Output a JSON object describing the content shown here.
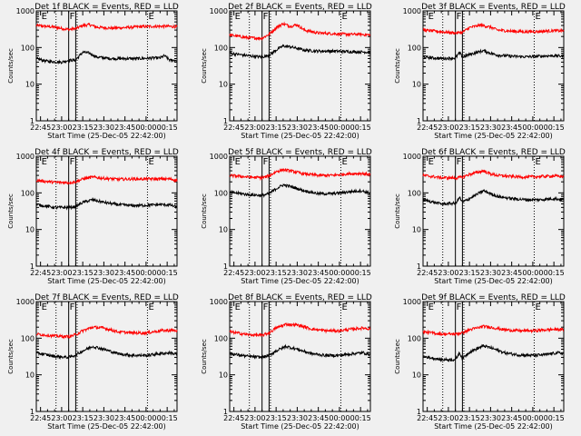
{
  "chart_data": {
    "type": "line",
    "scale": "log",
    "ylim": [
      1,
      1000
    ],
    "y_ticks": [
      {
        "v": 1,
        "label": "1"
      },
      {
        "v": 10,
        "label": "10"
      },
      {
        "v": 100,
        "label": "100"
      },
      {
        "v": 1000,
        "label": "1000"
      }
    ],
    "ylabel": "Counts/sec",
    "xlabel": "Start Time (25-Dec-05 22:42:00)",
    "xlim_minutes": [
      -3,
      97
    ],
    "x_ticks": [
      {
        "m": 0,
        "label": "22:45"
      },
      {
        "m": 15,
        "label": "23:00"
      },
      {
        "m": 30,
        "label": "23:15"
      },
      {
        "m": 45,
        "label": "23:30"
      },
      {
        "m": 60,
        "label": "23:45"
      },
      {
        "m": 75,
        "label": "00:00"
      },
      {
        "m": 90,
        "label": "00:15"
      }
    ],
    "dotted_lines_minutes": [
      11,
      26,
      76
    ],
    "solid_lines_minutes": [
      20,
      25
    ],
    "markers": [
      {
        "m": 0,
        "label": "E"
      },
      {
        "m": 20,
        "label": "F"
      },
      {
        "m": 76,
        "label": "E"
      }
    ],
    "series_colors": {
      "events": "#000000",
      "lld": "#ff0000"
    },
    "panels": [
      {
        "title": "Det 1f BLACK = Events, RED = LLD",
        "events": [
          [
            -3,
            50
          ],
          [
            5,
            42
          ],
          [
            15,
            40
          ],
          [
            20,
            45
          ],
          [
            22,
            45
          ],
          [
            25,
            46
          ],
          [
            30,
            75
          ],
          [
            35,
            70
          ],
          [
            40,
            55
          ],
          [
            50,
            50
          ],
          [
            60,
            50
          ],
          [
            70,
            50
          ],
          [
            80,
            52
          ],
          [
            85,
            52
          ],
          [
            88,
            60
          ],
          [
            92,
            45
          ],
          [
            97,
            45
          ]
        ],
        "lld": [
          [
            -3,
            400
          ],
          [
            10,
            360
          ],
          [
            20,
            310
          ],
          [
            25,
            330
          ],
          [
            30,
            400
          ],
          [
            35,
            420
          ],
          [
            40,
            360
          ],
          [
            50,
            340
          ],
          [
            60,
            350
          ],
          [
            70,
            370
          ],
          [
            80,
            380
          ],
          [
            90,
            380
          ],
          [
            97,
            370
          ]
        ]
      },
      {
        "title": "Det 2f BLACK = Events, RED = LLD",
        "events": [
          [
            -3,
            70
          ],
          [
            10,
            60
          ],
          [
            20,
            55
          ],
          [
            25,
            62
          ],
          [
            30,
            85
          ],
          [
            35,
            110
          ],
          [
            40,
            105
          ],
          [
            45,
            95
          ],
          [
            50,
            85
          ],
          [
            60,
            80
          ],
          [
            70,
            80
          ],
          [
            80,
            78
          ],
          [
            90,
            76
          ],
          [
            97,
            75
          ]
        ],
        "lld": [
          [
            -3,
            220
          ],
          [
            10,
            185
          ],
          [
            20,
            180
          ],
          [
            25,
            230
          ],
          [
            30,
            350
          ],
          [
            35,
            450
          ],
          [
            40,
            380
          ],
          [
            45,
            420
          ],
          [
            50,
            300
          ],
          [
            60,
            250
          ],
          [
            70,
            240
          ],
          [
            80,
            230
          ],
          [
            90,
            230
          ],
          [
            97,
            220
          ]
        ]
      },
      {
        "title": "Det 3f BLACK = Events, RED = LLD",
        "events": [
          [
            -3,
            55
          ],
          [
            10,
            50
          ],
          [
            20,
            52
          ],
          [
            23,
            72
          ],
          [
            25,
            55
          ],
          [
            30,
            65
          ],
          [
            40,
            82
          ],
          [
            45,
            70
          ],
          [
            50,
            62
          ],
          [
            60,
            58
          ],
          [
            70,
            56
          ],
          [
            80,
            58
          ],
          [
            90,
            60
          ],
          [
            97,
            58
          ]
        ],
        "lld": [
          [
            -3,
            300
          ],
          [
            10,
            270
          ],
          [
            20,
            250
          ],
          [
            25,
            260
          ],
          [
            30,
            350
          ],
          [
            38,
            410
          ],
          [
            45,
            360
          ],
          [
            50,
            300
          ],
          [
            60,
            280
          ],
          [
            70,
            270
          ],
          [
            80,
            275
          ],
          [
            90,
            290
          ],
          [
            97,
            285
          ]
        ]
      },
      {
        "title": "Det 4f BLACK = Events, RED = LLD",
        "events": [
          [
            -3,
            48
          ],
          [
            10,
            40
          ],
          [
            20,
            40
          ],
          [
            25,
            42
          ],
          [
            30,
            55
          ],
          [
            37,
            65
          ],
          [
            45,
            55
          ],
          [
            55,
            48
          ],
          [
            65,
            45
          ],
          [
            75,
            46
          ],
          [
            85,
            48
          ],
          [
            92,
            47
          ],
          [
            97,
            40
          ]
        ],
        "lld": [
          [
            -3,
            220
          ],
          [
            10,
            195
          ],
          [
            20,
            190
          ],
          [
            25,
            200
          ],
          [
            30,
            240
          ],
          [
            37,
            270
          ],
          [
            45,
            250
          ],
          [
            55,
            235
          ],
          [
            65,
            240
          ],
          [
            75,
            240
          ],
          [
            85,
            240
          ],
          [
            92,
            240
          ],
          [
            97,
            220
          ]
        ]
      },
      {
        "title": "Det 5f BLACK = Events, RED = LLD",
        "events": [
          [
            -3,
            105
          ],
          [
            10,
            90
          ],
          [
            20,
            85
          ],
          [
            25,
            95
          ],
          [
            30,
            130
          ],
          [
            35,
            165
          ],
          [
            40,
            150
          ],
          [
            50,
            115
          ],
          [
            60,
            95
          ],
          [
            70,
            95
          ],
          [
            80,
            105
          ],
          [
            90,
            115
          ],
          [
            97,
            100
          ]
        ],
        "lld": [
          [
            -3,
            300
          ],
          [
            10,
            270
          ],
          [
            20,
            260
          ],
          [
            25,
            290
          ],
          [
            30,
            380
          ],
          [
            35,
            430
          ],
          [
            40,
            400
          ],
          [
            50,
            330
          ],
          [
            60,
            300
          ],
          [
            70,
            300
          ],
          [
            80,
            330
          ],
          [
            90,
            340
          ],
          [
            97,
            320
          ]
        ]
      },
      {
        "title": "Det 6f BLACK = Events, RED = LLD",
        "events": [
          [
            -3,
            65
          ],
          [
            10,
            50
          ],
          [
            20,
            52
          ],
          [
            23,
            75
          ],
          [
            25,
            55
          ],
          [
            30,
            70
          ],
          [
            40,
            115
          ],
          [
            45,
            95
          ],
          [
            50,
            80
          ],
          [
            60,
            70
          ],
          [
            70,
            65
          ],
          [
            80,
            65
          ],
          [
            90,
            70
          ],
          [
            97,
            65
          ]
        ],
        "lld": [
          [
            -3,
            300
          ],
          [
            10,
            260
          ],
          [
            20,
            255
          ],
          [
            25,
            270
          ],
          [
            30,
            320
          ],
          [
            40,
            400
          ],
          [
            45,
            330
          ],
          [
            50,
            300
          ],
          [
            60,
            280
          ],
          [
            70,
            270
          ],
          [
            80,
            280
          ],
          [
            90,
            290
          ],
          [
            97,
            280
          ]
        ]
      },
      {
        "title": "Det 7f BLACK = Events, RED = LLD",
        "events": [
          [
            -3,
            40
          ],
          [
            10,
            32
          ],
          [
            20,
            30
          ],
          [
            25,
            35
          ],
          [
            30,
            45
          ],
          [
            37,
            60
          ],
          [
            45,
            50
          ],
          [
            55,
            38
          ],
          [
            65,
            34
          ],
          [
            75,
            34
          ],
          [
            85,
            38
          ],
          [
            92,
            40
          ],
          [
            97,
            36
          ]
        ],
        "lld": [
          [
            -3,
            130
          ],
          [
            10,
            115
          ],
          [
            20,
            110
          ],
          [
            25,
            125
          ],
          [
            30,
            160
          ],
          [
            37,
            200
          ],
          [
            45,
            190
          ],
          [
            55,
            150
          ],
          [
            65,
            140
          ],
          [
            75,
            140
          ],
          [
            85,
            160
          ],
          [
            92,
            165
          ],
          [
            97,
            160
          ]
        ]
      },
      {
        "title": "Det 8f BLACK = Events, RED = LLD",
        "events": [
          [
            -3,
            38
          ],
          [
            10,
            32
          ],
          [
            20,
            30
          ],
          [
            25,
            34
          ],
          [
            30,
            45
          ],
          [
            37,
            60
          ],
          [
            45,
            50
          ],
          [
            55,
            38
          ],
          [
            65,
            34
          ],
          [
            75,
            34
          ],
          [
            85,
            38
          ],
          [
            92,
            40
          ],
          [
            97,
            36
          ]
        ],
        "lld": [
          [
            -3,
            150
          ],
          [
            10,
            125
          ],
          [
            20,
            120
          ],
          [
            25,
            140
          ],
          [
            30,
            190
          ],
          [
            37,
            240
          ],
          [
            45,
            230
          ],
          [
            55,
            180
          ],
          [
            65,
            160
          ],
          [
            75,
            160
          ],
          [
            85,
            180
          ],
          [
            92,
            190
          ],
          [
            97,
            180
          ]
        ]
      },
      {
        "title": "Det 9f BLACK = Events, RED = LLD",
        "events": [
          [
            -3,
            32
          ],
          [
            10,
            26
          ],
          [
            20,
            26
          ],
          [
            23,
            40
          ],
          [
            25,
            28
          ],
          [
            30,
            42
          ],
          [
            40,
            62
          ],
          [
            45,
            55
          ],
          [
            55,
            40
          ],
          [
            65,
            35
          ],
          [
            75,
            34
          ],
          [
            85,
            36
          ],
          [
            92,
            40
          ],
          [
            97,
            38
          ]
        ],
        "lld": [
          [
            -3,
            150
          ],
          [
            10,
            130
          ],
          [
            20,
            130
          ],
          [
            25,
            140
          ],
          [
            30,
            170
          ],
          [
            40,
            210
          ],
          [
            45,
            200
          ],
          [
            55,
            170
          ],
          [
            65,
            160
          ],
          [
            75,
            160
          ],
          [
            85,
            170
          ],
          [
            92,
            175
          ],
          [
            97,
            170
          ]
        ]
      }
    ]
  }
}
